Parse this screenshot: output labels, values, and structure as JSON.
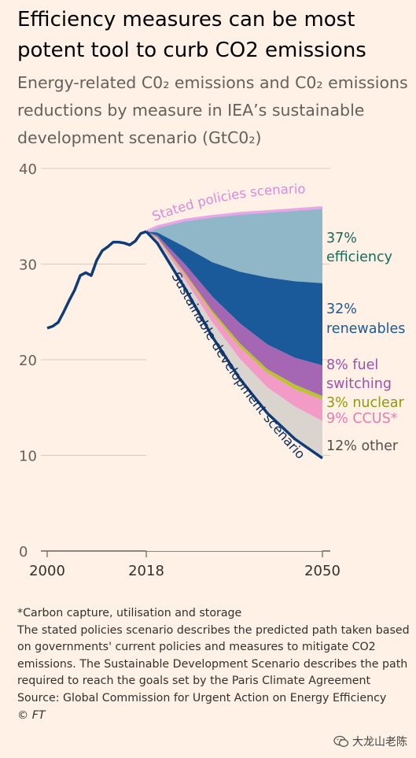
{
  "title": "Efficiency measures can be most potent tool to curb CO2 emissions",
  "subtitle": "Energy-related C0₂ emissions and C0₂ emissions reductions by measure in IEA’s sustainable development scenario (GtC0₂)",
  "notes": {
    "footnote": "*Carbon capture, utilisation and storage",
    "description": "The stated policies scenario describes the predicted path taken based on governments' current policies and measures to mitigate CO2 emissions. The Sustainable Development Scenario describes the path required to reach the goals set by the Paris Climate Agreement",
    "source": "Source: Global Commission for Urgent Action on Energy Efficiency",
    "credit": "© FT"
  },
  "watermark": {
    "text": "大龙山老陈",
    "icon": "wechat-icon"
  },
  "colors": {
    "background": "#fff1e5",
    "historical": "#0f3c78",
    "stated": "#e7a6e9",
    "efficiency": "#8fb7c8",
    "renewables": "#1a5a9a",
    "fuel_switching": "#a566b4",
    "nuclear": "#bcc235",
    "ccus": "#f29bc7",
    "other": "#d9d4cd",
    "sds_line": "#0f3c78"
  },
  "chart_data": {
    "type": "area",
    "x_ticks": [
      "2000",
      "2018",
      "2050"
    ],
    "y_ticks": [
      "0",
      "10",
      "20",
      "30",
      "40"
    ],
    "xlim": [
      2000,
      2050
    ],
    "ylim": [
      0,
      40
    ],
    "grid": true,
    "historical": {
      "x": [
        2000,
        2001,
        2002,
        2003,
        2004,
        2005,
        2006,
        2007,
        2008,
        2009,
        2010,
        2011,
        2012,
        2013,
        2014,
        2015,
        2016,
        2017,
        2018
      ],
      "y": [
        23.3,
        23.5,
        23.9,
        25.0,
        26.2,
        27.3,
        28.8,
        29.1,
        28.8,
        30.4,
        31.4,
        31.8,
        32.3,
        32.3,
        32.2,
        32.0,
        32.4,
        33.2,
        33.4
      ]
    },
    "projection_x": [
      2018,
      2020,
      2025,
      2030,
      2035,
      2040,
      2045,
      2050
    ],
    "stated_policies": [
      33.4,
      33.9,
      34.6,
      35.0,
      35.3,
      35.5,
      35.7,
      35.9
    ],
    "after_efficiency": [
      33.4,
      33.3,
      31.8,
      30.2,
      29.2,
      28.6,
      28.2,
      28.0
    ],
    "after_renewables": [
      33.4,
      33.0,
      30.0,
      26.6,
      23.8,
      21.6,
      20.2,
      19.4
    ],
    "after_fuel_switching": [
      33.4,
      32.8,
      29.1,
      25.1,
      21.7,
      19.0,
      17.4,
      16.2
    ],
    "after_nuclear": [
      33.4,
      32.7,
      28.9,
      24.8,
      21.3,
      18.6,
      16.9,
      15.8
    ],
    "after_ccus": [
      33.4,
      32.6,
      28.4,
      23.9,
      20.1,
      17.1,
      15.1,
      13.6
    ],
    "sustainable_development": [
      33.4,
      32.2,
      27.5,
      22.4,
      18.0,
      14.4,
      11.7,
      9.7
    ],
    "labels": {
      "stated": "Stated policies scenario",
      "sds": "Sustainable development scenario"
    },
    "measures": [
      {
        "pct": "37%",
        "name": "efficiency",
        "color": "#176b5d"
      },
      {
        "pct": "32%",
        "name": "renewables",
        "color": "#1a5a9a"
      },
      {
        "pct": "8% fuel",
        "name": "switching",
        "color": "#9b52a9"
      },
      {
        "pct": "3% nuclear",
        "name": "",
        "color": "#8f9a10"
      },
      {
        "pct": "9% CCUS*",
        "name": "",
        "color": "#e779b3"
      },
      {
        "pct": "12% other",
        "name": "",
        "color": "#55504c"
      }
    ]
  }
}
